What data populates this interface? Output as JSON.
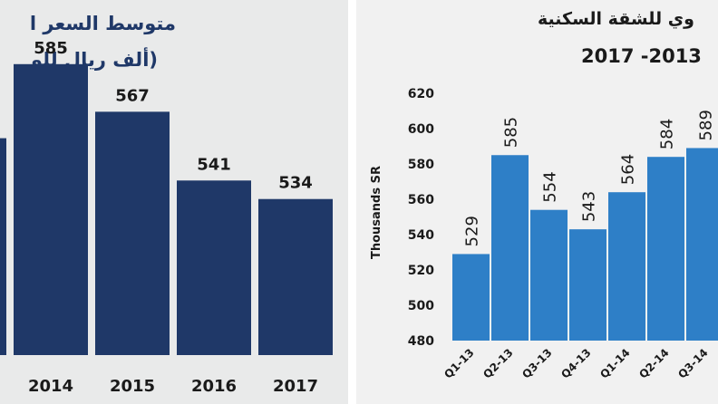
{
  "chart_data": [
    {
      "type": "bar",
      "title": [
        "متوسط السعر ا",
        "(ألف ريال للو"
      ],
      "categories": [
        "",
        "2014",
        "2015",
        "2016",
        "2017"
      ],
      "values": [
        null,
        585,
        567,
        541,
        534
      ],
      "data_labels": [
        "",
        "585",
        "567",
        "541",
        "534"
      ],
      "color": "#1f3868"
    },
    {
      "type": "bar",
      "title": [
        "وي للشقة السكنية",
        "2017 -2013"
      ],
      "ylabel": "Thousands SR",
      "ylim": [
        480,
        620
      ],
      "yticks": [
        "620",
        "600",
        "580",
        "560",
        "540",
        "520",
        "500",
        "480"
      ],
      "categories": [
        "Q1-13",
        "Q2-13",
        "Q3-13",
        "Q4-13",
        "Q1-14",
        "Q2-14",
        "Q3-14"
      ],
      "values": [
        529,
        585,
        554,
        543,
        564,
        584,
        589
      ],
      "data_labels": [
        "529",
        "585",
        "554",
        "543",
        "564",
        "584",
        "589"
      ],
      "color": "#2e7fc7"
    }
  ]
}
